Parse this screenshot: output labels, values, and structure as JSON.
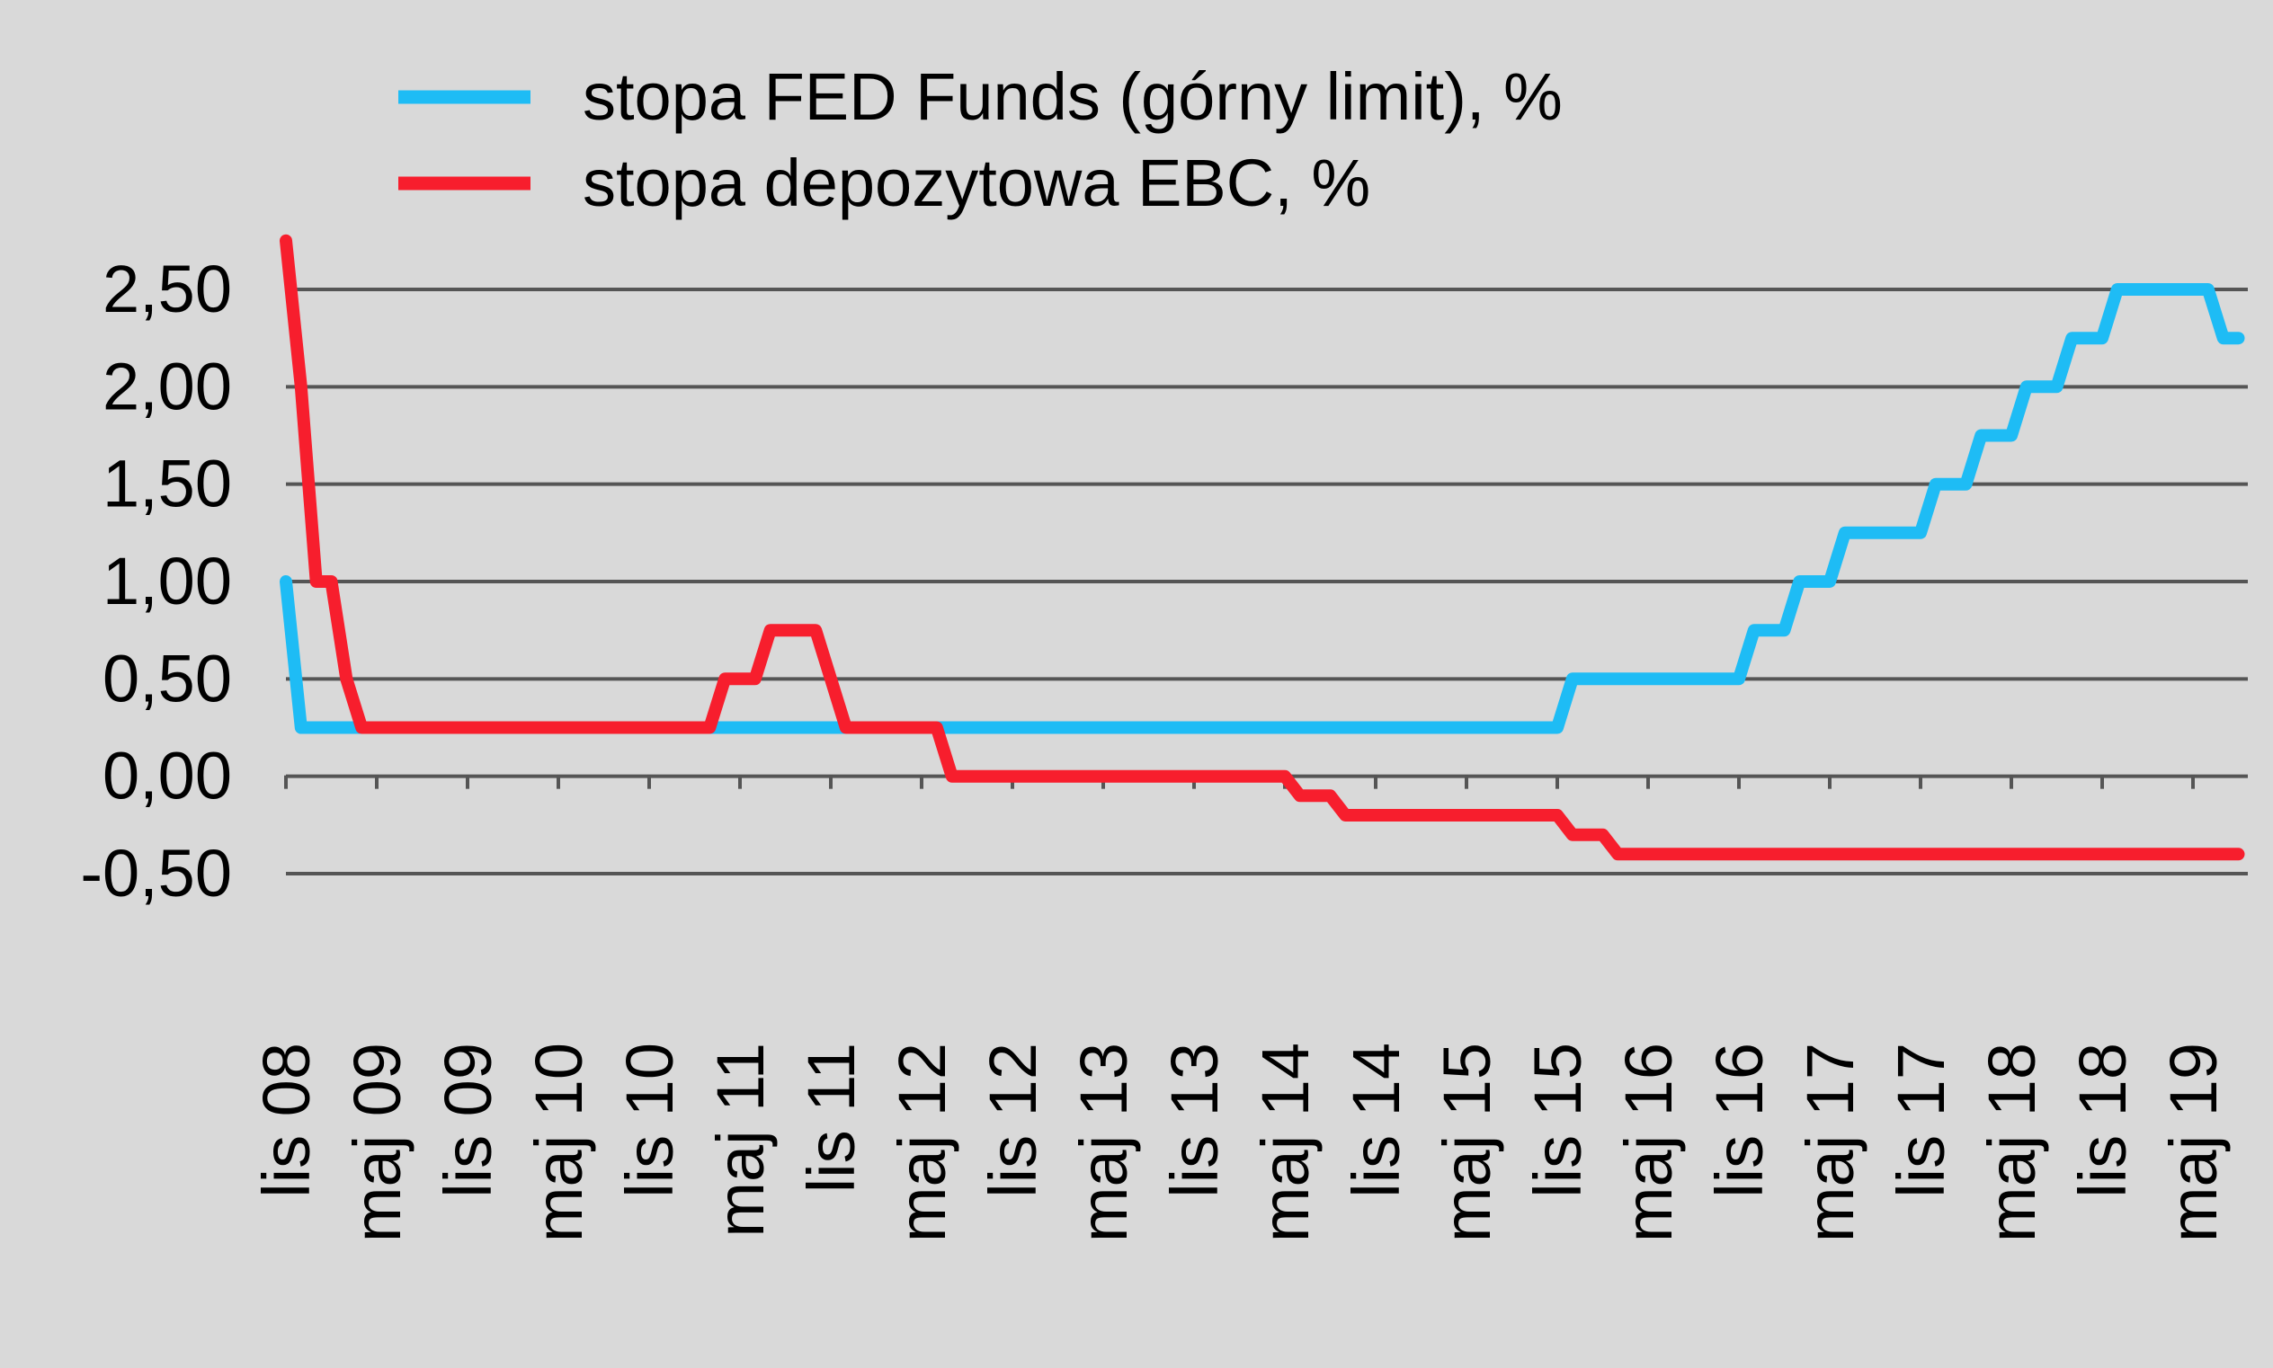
{
  "chart_data": {
    "type": "line",
    "title": "",
    "xlabel": "",
    "ylabel": "",
    "ylim": [
      -0.5,
      2.5
    ],
    "yticks": [
      "2,50",
      "2,00",
      "1,50",
      "1,00",
      "0,50",
      "0,00",
      "-0,50"
    ],
    "ytick_values": [
      2.5,
      2.0,
      1.5,
      1.0,
      0.5,
      0.0,
      -0.5
    ],
    "xtick_labels": [
      "lis 08",
      "maj 09",
      "lis 09",
      "maj 10",
      "lis 10",
      "maj 11",
      "lis 11",
      "maj 12",
      "lis 12",
      "maj 13",
      "lis 13",
      "maj 14",
      "lis 14",
      "maj 15",
      "lis 15",
      "maj 16",
      "lis 16",
      "maj 17",
      "lis 17",
      "maj 18",
      "lis 18",
      "maj 19"
    ],
    "grid": true,
    "legend_position": "top",
    "series": [
      {
        "name": "stopa FED Funds (górny limit), %",
        "color": "#1ebcf5",
        "points": [
          [
            "2008-11",
            1.0
          ],
          [
            "2008-12",
            0.25
          ],
          [
            "2015-11",
            0.25
          ],
          [
            "2015-12",
            0.5
          ],
          [
            "2016-11",
            0.5
          ],
          [
            "2016-12",
            0.75
          ],
          [
            "2017-02",
            0.75
          ],
          [
            "2017-03",
            1.0
          ],
          [
            "2017-05",
            1.0
          ],
          [
            "2017-06",
            1.25
          ],
          [
            "2017-11",
            1.25
          ],
          [
            "2017-12",
            1.5
          ],
          [
            "2018-02",
            1.5
          ],
          [
            "2018-03",
            1.75
          ],
          [
            "2018-05",
            1.75
          ],
          [
            "2018-06",
            2.0
          ],
          [
            "2018-08",
            2.0
          ],
          [
            "2018-09",
            2.25
          ],
          [
            "2018-11",
            2.25
          ],
          [
            "2018-12",
            2.5
          ],
          [
            "2019-06",
            2.5
          ],
          [
            "2019-07",
            2.25
          ],
          [
            "2019-08",
            2.25
          ]
        ]
      },
      {
        "name": "stopa depozytowa EBC, %",
        "color": "#f71e2d",
        "points": [
          [
            "2008-11",
            2.75
          ],
          [
            "2008-12",
            2.0
          ],
          [
            "2009-01",
            1.0
          ],
          [
            "2009-02",
            1.0
          ],
          [
            "2009-03",
            0.5
          ],
          [
            "2009-04",
            0.25
          ],
          [
            "2011-03",
            0.25
          ],
          [
            "2011-04",
            0.5
          ],
          [
            "2011-06",
            0.5
          ],
          [
            "2011-07",
            0.75
          ],
          [
            "2011-10",
            0.75
          ],
          [
            "2011-11",
            0.5
          ],
          [
            "2011-12",
            0.25
          ],
          [
            "2012-06",
            0.25
          ],
          [
            "2012-07",
            0.0
          ],
          [
            "2014-05",
            0.0
          ],
          [
            "2014-06",
            -0.1
          ],
          [
            "2014-08",
            -0.1
          ],
          [
            "2014-09",
            -0.2
          ],
          [
            "2015-11",
            -0.2
          ],
          [
            "2015-12",
            -0.3
          ],
          [
            "2016-02",
            -0.3
          ],
          [
            "2016-03",
            -0.4
          ],
          [
            "2019-08",
            -0.4
          ]
        ]
      }
    ]
  }
}
